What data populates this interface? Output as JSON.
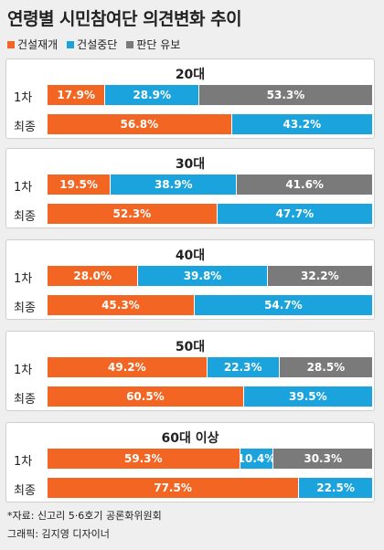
{
  "title": "연령별 시민참여단 의견변화 추이",
  "colors": {
    "resume": "#f26522",
    "halt": "#1aa3dc",
    "undecided": "#7a7a7a"
  },
  "chart_data": {
    "type": "bar",
    "stacked": true,
    "orientation": "horizontal",
    "legend": [
      "건설재개",
      "건설중단",
      "판단 유보"
    ],
    "legend_position": "top-left",
    "row_labels": [
      "1차",
      "최종"
    ],
    "groups": [
      {
        "label": "20대",
        "rows": [
          {
            "label": "1차",
            "values": [
              17.9,
              28.9,
              53.3
            ],
            "display": [
              "17.9%",
              "28.9%",
              "53.3%"
            ]
          },
          {
            "label": "최종",
            "values": [
              56.8,
              43.2
            ],
            "display": [
              "56.8%",
              "43.2%"
            ]
          }
        ]
      },
      {
        "label": "30대",
        "rows": [
          {
            "label": "1차",
            "values": [
              19.5,
              38.9,
              41.6
            ],
            "display": [
              "19.5%",
              "38.9%",
              "41.6%"
            ]
          },
          {
            "label": "최종",
            "values": [
              52.3,
              47.7
            ],
            "display": [
              "52.3%",
              "47.7%"
            ]
          }
        ]
      },
      {
        "label": "40대",
        "rows": [
          {
            "label": "1차",
            "values": [
              28.0,
              39.8,
              32.2
            ],
            "display": [
              "28.0%",
              "39.8%",
              "32.2%"
            ]
          },
          {
            "label": "최종",
            "values": [
              45.3,
              54.7
            ],
            "display": [
              "45.3%",
              "54.7%"
            ]
          }
        ]
      },
      {
        "label": "50대",
        "rows": [
          {
            "label": "1차",
            "values": [
              49.2,
              22.3,
              28.5
            ],
            "display": [
              "49.2%",
              "22.3%",
              "28.5%"
            ]
          },
          {
            "label": "최종",
            "values": [
              60.5,
              39.5
            ],
            "display": [
              "60.5%",
              "39.5%"
            ]
          }
        ]
      },
      {
        "label": "60대 이상",
        "rows": [
          {
            "label": "1차",
            "values": [
              59.3,
              10.4,
              30.3
            ],
            "display": [
              "59.3%",
              "10.4%",
              "30.3%"
            ]
          },
          {
            "label": "최종",
            "values": [
              77.5,
              22.5
            ],
            "display": [
              "77.5%",
              "22.5%"
            ]
          }
        ]
      }
    ]
  },
  "footer": {
    "source": "*자료: 신고리 5·6호기 공론화위원회",
    "credit": "그래픽: 김지영 디자이너"
  }
}
